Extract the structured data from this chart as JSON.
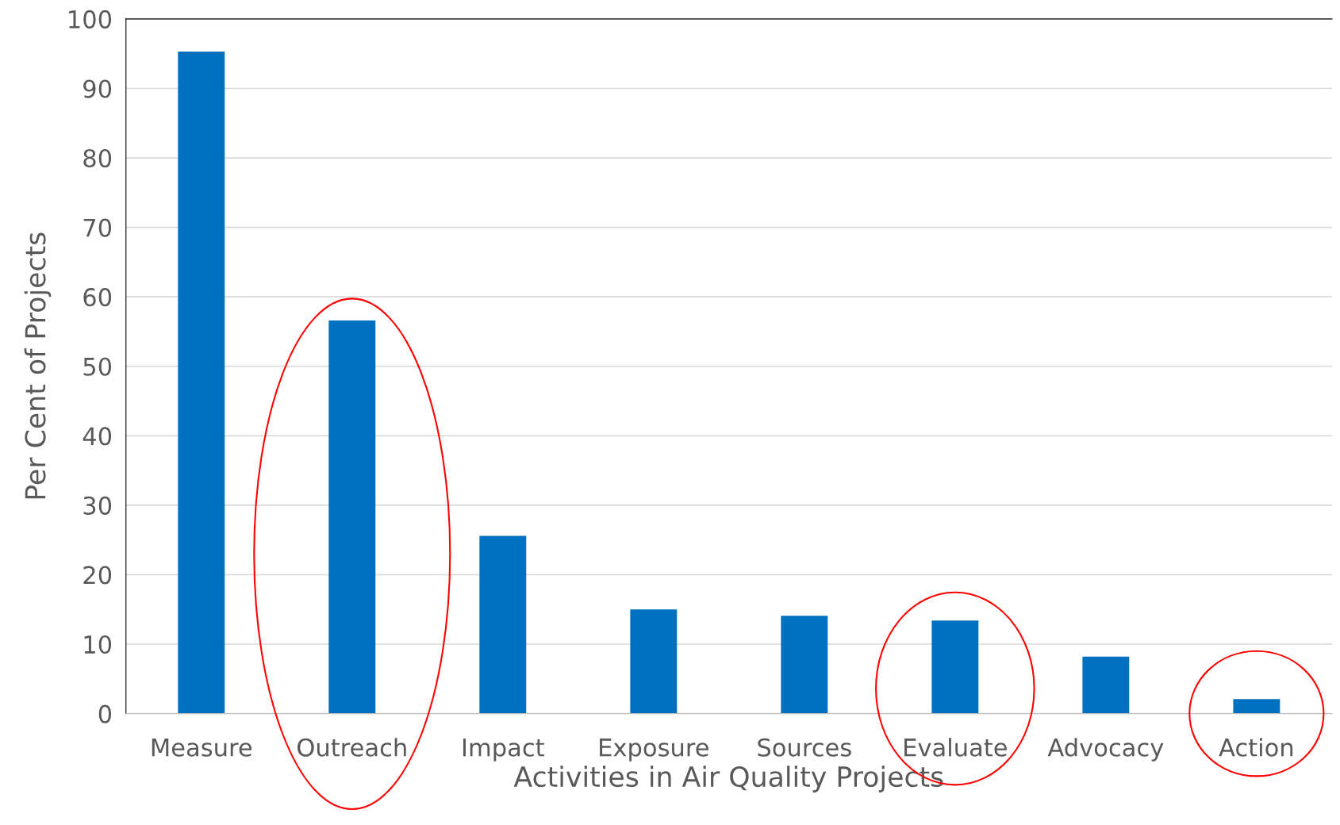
{
  "chart_data": {
    "type": "bar",
    "xlabel": "Activities in Air Quality Projects",
    "ylabel": "Per Cent of Projects",
    "categories": [
      "Measure",
      "Outreach",
      "Impact",
      "Exposure",
      "Sources",
      "Evaluate",
      "Advocacy",
      "Action"
    ],
    "values": [
      95.3,
      56.6,
      25.6,
      15.0,
      14.1,
      13.4,
      8.2,
      2.1
    ],
    "color": "#0070c0",
    "ylim": [
      0,
      100
    ],
    "yticks": [
      0,
      10,
      20,
      30,
      40,
      50,
      60,
      70,
      80,
      90,
      100
    ],
    "grid": "y",
    "legend": false
  }
}
